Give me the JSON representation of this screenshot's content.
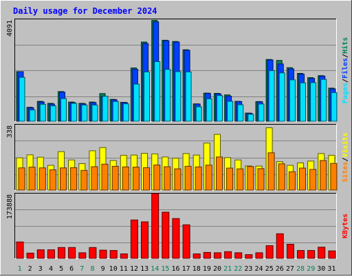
{
  "title": "Daily usage for December 2024",
  "colors": {
    "background": "#c0c0c0",
    "title": "#0000ff",
    "hits": "#00805c",
    "files": "#0040ff",
    "pages": "#00e0ff",
    "visits": "#ffff00",
    "sites": "#ff8000",
    "kbytes": "#ff0000",
    "weekend": "#00805c",
    "grid": "#808080"
  },
  "chart_data": [
    {
      "type": "bar",
      "panel": "hits-files-pages",
      "categories": [
        "1",
        "2",
        "3",
        "4",
        "5",
        "6",
        "7",
        "8",
        "9",
        "10",
        "11",
        "12",
        "13",
        "14",
        "15",
        "16",
        "17",
        "18",
        "19",
        "20",
        "21",
        "22",
        "23",
        "24",
        "25",
        "26",
        "27",
        "28",
        "29",
        "30",
        "31"
      ],
      "ymax_label": "4091",
      "ylim": [
        0,
        4091
      ],
      "grid": true,
      "legend_labels": [
        "Pages",
        "Files",
        "Hits"
      ],
      "legend_separator": "/",
      "series": [
        {
          "name": "Hits",
          "values": [
            1990,
            560,
            800,
            720,
            1190,
            770,
            720,
            770,
            1110,
            880,
            760,
            2140,
            3180,
            4050,
            3250,
            3200,
            2870,
            700,
            1130,
            1120,
            1060,
            800,
            330,
            790,
            2480,
            2440,
            2150,
            1920,
            1750,
            1830,
            1330
          ]
        },
        {
          "name": "Files",
          "values": [
            1990,
            540,
            770,
            690,
            1170,
            750,
            700,
            750,
            1000,
            860,
            750,
            2090,
            3120,
            3990,
            3230,
            3180,
            2850,
            690,
            1120,
            1100,
            1010,
            790,
            320,
            780,
            2460,
            2300,
            2100,
            1890,
            1720,
            1810,
            1300
          ]
        },
        {
          "name": "Pages",
          "values": [
            1760,
            450,
            680,
            620,
            910,
            720,
            650,
            650,
            1000,
            790,
            700,
            1490,
            1980,
            2390,
            2080,
            1990,
            1980,
            580,
            900,
            1030,
            800,
            660,
            280,
            690,
            2030,
            1940,
            1660,
            1540,
            1550,
            1680,
            1150
          ]
        }
      ]
    },
    {
      "type": "bar",
      "panel": "visits-sites",
      "categories": [
        "1",
        "2",
        "3",
        "4",
        "5",
        "6",
        "7",
        "8",
        "9",
        "10",
        "11",
        "12",
        "13",
        "14",
        "15",
        "16",
        "17",
        "18",
        "19",
        "20",
        "21",
        "22",
        "23",
        "24",
        "25",
        "26",
        "27",
        "28",
        "29",
        "30",
        "31"
      ],
      "ymax_label": "338",
      "ylim": [
        0,
        338
      ],
      "grid": true,
      "legend_labels": [
        "Sites",
        "Visits"
      ],
      "legend_separator": "/",
      "series": [
        {
          "name": "Visits",
          "values": [
            167,
            182,
            170,
            128,
            199,
            156,
            137,
            203,
            220,
            153,
            180,
            181,
            190,
            187,
            171,
            165,
            189,
            181,
            243,
            288,
            168,
            156,
            125,
            124,
            322,
            147,
            128,
            141,
            150,
            189,
            180
          ]
        },
        {
          "name": "Sites",
          "values": [
            115,
            119,
            115,
            105,
            115,
            116,
            102,
            121,
            134,
            123,
            120,
            119,
            116,
            130,
            121,
            110,
            123,
            120,
            129,
            171,
            114,
            110,
            122,
            111,
            193,
            136,
            95,
            114,
            107,
            153,
            138
          ]
        }
      ]
    },
    {
      "type": "bar",
      "panel": "kbytes",
      "categories": [
        "1",
        "2",
        "3",
        "4",
        "5",
        "6",
        "7",
        "8",
        "9",
        "10",
        "11",
        "12",
        "13",
        "14",
        "15",
        "16",
        "17",
        "18",
        "19",
        "20",
        "21",
        "22",
        "23",
        "24",
        "25",
        "26",
        "27",
        "28",
        "29",
        "30",
        "31"
      ],
      "ymax_label": "173888",
      "ylim": [
        0,
        173888
      ],
      "grid": true,
      "legend_labels": [
        "KBytes"
      ],
      "series": [
        {
          "name": "KBytes",
          "values": [
            44000,
            14000,
            23000,
            23000,
            29000,
            29000,
            15000,
            29000,
            22000,
            21000,
            12000,
            103000,
            98000,
            174000,
            124000,
            107000,
            90000,
            12000,
            16000,
            15000,
            18000,
            15000,
            10000,
            15000,
            34000,
            66000,
            38000,
            21000,
            21000,
            30000,
            20000
          ]
        }
      ]
    }
  ],
  "weekend_days": [
    1,
    7,
    8,
    14,
    15,
    21,
    22,
    28,
    29
  ]
}
